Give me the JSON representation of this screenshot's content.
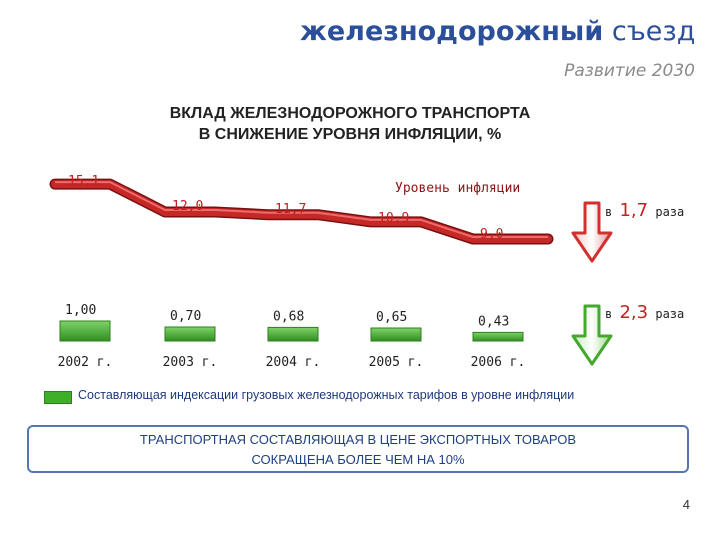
{
  "header": {
    "brand_bold": "железнодорожный",
    "brand_rest": "съезд",
    "subtitle": "Развитие 2030"
  },
  "slide_title": {
    "line1": "ВКЛАД ЖЕЛЕЗНОДОРОЖНОГО ТРАНСПОРТА",
    "line2": "В СНИЖЕНИЕ УРОВНЯ ИНФЛЯЦИИ, %"
  },
  "colors": {
    "inflation_line": "#c62828",
    "tariff_bar": "#3fae29",
    "down_arrow_red": "#d32f2f",
    "down_arrow_green": "#43a82c",
    "brand": "#2b4f9a"
  },
  "chart_data": {
    "type": "line",
    "categories": [
      "2002 г.",
      "2003 г.",
      "2004 г.",
      "2005 г.",
      "2006 г."
    ],
    "series": [
      {
        "name": "Уровень инфляции",
        "type": "line",
        "values": [
          15.1,
          12.0,
          11.7,
          10.9,
          9.0
        ],
        "labels": [
          "15,1",
          "12,0",
          "11,7",
          "10,9",
          "9,0"
        ]
      },
      {
        "name": "Составляющая индексации грузовых железнодорожных тарифов в уровне инфляции",
        "type": "bar",
        "values": [
          1.0,
          0.7,
          0.68,
          0.65,
          0.43
        ],
        "labels": [
          "1,00",
          "0,70",
          "0,68",
          "0,65",
          "0,43"
        ]
      }
    ],
    "annotations": [
      {
        "prefix": "в",
        "value": "1,7",
        "suffix": "раза",
        "arrow": "red-down-arrow"
      },
      {
        "prefix": "в",
        "value": "2,3",
        "suffix": "раза",
        "arrow": "green-down-arrow"
      }
    ],
    "legend_placement": "bottom",
    "grid": false
  },
  "legend": {
    "tariff_label": "Составляющая индексации грузовых железнодорожных тарифов в уровне инфляции"
  },
  "summary": {
    "line1": "ТРАНСПОРТНАЯ СОСТАВЛЯЮЩАЯ В ЦЕНЕ ЭКСПОРТНЫХ ТОВАРОВ",
    "line2": "СОКРАЩЕНА БОЛЕЕ ЧЕМ НА 10%"
  },
  "page_number": "4"
}
